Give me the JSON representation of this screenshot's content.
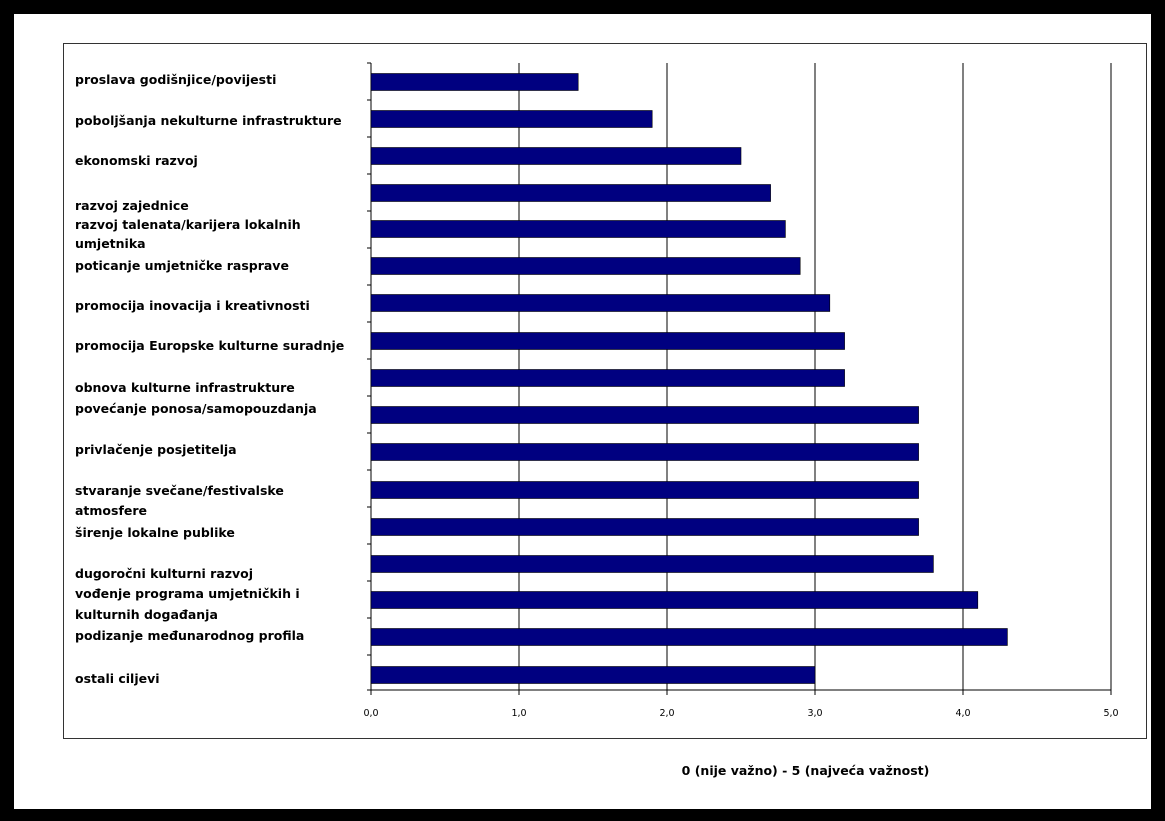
{
  "chart_data": {
    "type": "bar",
    "orientation": "horizontal",
    "categories": [
      "proslava godišnjice/povijesti",
      "poboljšanja nekulturne infrastrukture",
      "ekonomski razvoj",
      "razvoj zajednice",
      "razvoj talenata/karijera lokalnih umjetnika",
      "poticanje umjetničke rasprave",
      "promocija inovacija i kreativnosti",
      "promocija Europske kulturne suradnje",
      "obnova kulturne infrastrukture",
      "povećanje ponosa/samopouzdanja",
      "privlačenje posjetitelja",
      "stvaranje svečane/festivalske atmosfere",
      "širenje lokalne publike",
      "dugoročni kulturni razvoj",
      "vođenje programa umjetničkih i kulturnih događanja",
      "podizanje međunarodnog profila",
      "ostali ciljevi"
    ],
    "values": [
      1.4,
      1.9,
      2.5,
      2.7,
      2.8,
      2.9,
      3.1,
      3.2,
      3.2,
      3.7,
      3.7,
      3.7,
      3.7,
      3.8,
      4.1,
      4.3,
      3.0
    ],
    "xlim": [
      0,
      5
    ],
    "x_ticks": [
      "0,0",
      "1,0",
      "2,0",
      "3,0",
      "4,0",
      "5,0"
    ],
    "xlabel": "0 (nije važno) - 5 (najveća važnost)",
    "grid": "vertical",
    "bar_color": "#000080"
  }
}
